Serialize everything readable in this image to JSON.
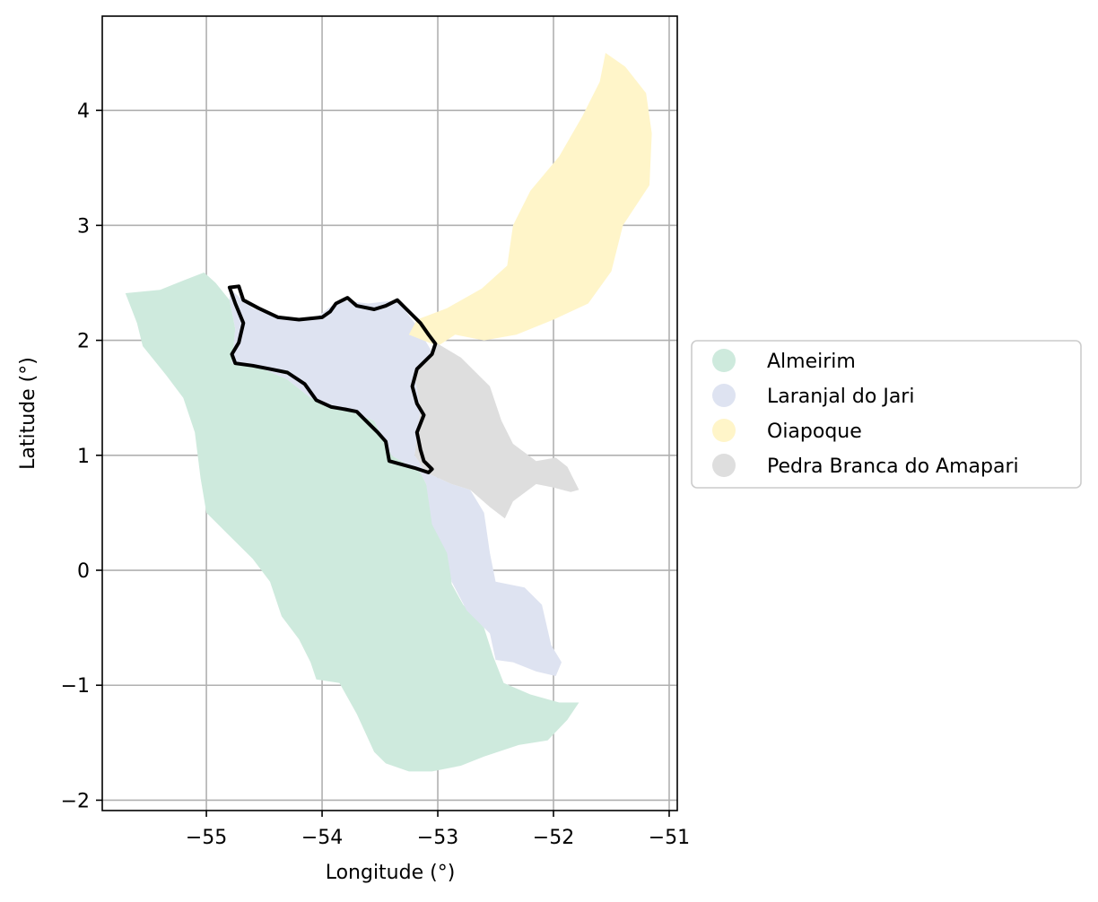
{
  "chart_data": {
    "type": "map",
    "xlabel": "Longitude (°)",
    "ylabel": "Latitude (°)",
    "xlim": [
      -55.9,
      -50.93
    ],
    "ylim": [
      -2.09,
      4.82
    ],
    "xticks": [
      -55,
      -54,
      -53,
      -52,
      -51
    ],
    "yticks": [
      -2,
      -1,
      0,
      1,
      2,
      3,
      4
    ],
    "xtick_labels": [
      "−55",
      "−54",
      "−53",
      "−52",
      "−51"
    ],
    "ytick_labels": [
      "−2",
      "−1",
      "0",
      "1",
      "2",
      "3",
      "4"
    ],
    "grid": true,
    "legend_position": "right, outside plot",
    "regions": [
      {
        "name": "Almeirim",
        "color": "#ceeadd",
        "polygon": [
          [
            -55.7,
            2.41
          ],
          [
            -55.4,
            2.44
          ],
          [
            -55.2,
            2.52
          ],
          [
            -55.02,
            2.59
          ],
          [
            -54.92,
            2.5
          ],
          [
            -54.8,
            2.35
          ],
          [
            -54.75,
            2.1
          ],
          [
            -54.78,
            1.8
          ],
          [
            -54.55,
            1.77
          ],
          [
            -54.3,
            1.66
          ],
          [
            -54.1,
            1.5
          ],
          [
            -53.8,
            1.4
          ],
          [
            -53.55,
            1.3
          ],
          [
            -53.4,
            1.0
          ],
          [
            -53.15,
            0.85
          ],
          [
            -53.1,
            0.75
          ],
          [
            -52.98,
            0.4
          ],
          [
            -52.9,
            0.15
          ],
          [
            -52.88,
            -0.12
          ],
          [
            -52.78,
            -0.3
          ],
          [
            -52.6,
            -0.5
          ],
          [
            -52.52,
            -0.75
          ],
          [
            -52.43,
            -0.98
          ],
          [
            -52.2,
            -1.08
          ],
          [
            -51.95,
            -1.15
          ],
          [
            -51.78,
            -1.15
          ],
          [
            -51.88,
            -1.3
          ],
          [
            -52.05,
            -1.48
          ],
          [
            -52.3,
            -1.52
          ],
          [
            -52.6,
            -1.62
          ],
          [
            -52.8,
            -1.7
          ],
          [
            -53.05,
            -1.75
          ],
          [
            -53.25,
            -1.75
          ],
          [
            -53.45,
            -1.68
          ],
          [
            -53.55,
            -1.58
          ],
          [
            -53.7,
            -1.25
          ],
          [
            -53.85,
            -0.98
          ],
          [
            -54.05,
            -0.95
          ],
          [
            -54.1,
            -0.8
          ],
          [
            -54.2,
            -0.6
          ],
          [
            -54.35,
            -0.4
          ],
          [
            -54.45,
            -0.1
          ],
          [
            -54.6,
            0.1
          ],
          [
            -54.8,
            0.3
          ],
          [
            -55.0,
            0.5
          ],
          [
            -55.05,
            0.8
          ],
          [
            -55.1,
            1.2
          ],
          [
            -55.2,
            1.5
          ],
          [
            -55.35,
            1.7
          ],
          [
            -55.55,
            1.95
          ],
          [
            -55.6,
            2.15
          ]
        ]
      },
      {
        "name": "Laranjal do Jari",
        "color": "#dee3f1",
        "polygon": [
          [
            -54.8,
            2.45
          ],
          [
            -54.6,
            2.28
          ],
          [
            -54.35,
            2.18
          ],
          [
            -54.05,
            2.2
          ],
          [
            -53.85,
            2.35
          ],
          [
            -53.6,
            2.32
          ],
          [
            -53.35,
            2.35
          ],
          [
            -53.2,
            2.15
          ],
          [
            -53.05,
            1.9
          ],
          [
            -53.2,
            1.7
          ],
          [
            -53.15,
            1.4
          ],
          [
            -53.2,
            1.0
          ],
          [
            -53.1,
            0.85
          ],
          [
            -52.88,
            0.75
          ],
          [
            -52.72,
            0.7
          ],
          [
            -52.6,
            0.5
          ],
          [
            -52.55,
            0.15
          ],
          [
            -52.5,
            -0.1
          ],
          [
            -52.25,
            -0.15
          ],
          [
            -52.1,
            -0.3
          ],
          [
            -52.02,
            -0.65
          ],
          [
            -51.93,
            -0.8
          ],
          [
            -51.98,
            -0.92
          ],
          [
            -52.15,
            -0.88
          ],
          [
            -52.35,
            -0.8
          ],
          [
            -52.5,
            -0.78
          ],
          [
            -52.55,
            -0.55
          ],
          [
            -52.75,
            -0.35
          ],
          [
            -52.88,
            -0.1
          ],
          [
            -52.92,
            0.15
          ],
          [
            -53.05,
            0.4
          ],
          [
            -53.1,
            0.75
          ],
          [
            -53.15,
            0.85
          ],
          [
            -53.4,
            1.0
          ],
          [
            -53.55,
            1.3
          ],
          [
            -53.8,
            1.4
          ],
          [
            -54.1,
            1.5
          ],
          [
            -54.3,
            1.66
          ],
          [
            -54.55,
            1.77
          ],
          [
            -54.78,
            1.8
          ],
          [
            -54.75,
            2.1
          ],
          [
            -54.8,
            2.35
          ]
        ]
      },
      {
        "name": "Oiapoque",
        "color": "#fff5c9",
        "polygon": [
          [
            -51.55,
            4.5
          ],
          [
            -51.38,
            4.38
          ],
          [
            -51.2,
            4.15
          ],
          [
            -51.15,
            3.8
          ],
          [
            -51.17,
            3.35
          ],
          [
            -51.4,
            3.0
          ],
          [
            -51.5,
            2.6
          ],
          [
            -51.7,
            2.32
          ],
          [
            -52.0,
            2.18
          ],
          [
            -52.32,
            2.05
          ],
          [
            -52.6,
            2.0
          ],
          [
            -52.85,
            2.05
          ],
          [
            -53.0,
            1.95
          ],
          [
            -53.25,
            2.05
          ],
          [
            -53.18,
            2.18
          ],
          [
            -52.92,
            2.28
          ],
          [
            -52.62,
            2.45
          ],
          [
            -52.4,
            2.65
          ],
          [
            -52.35,
            3.0
          ],
          [
            -52.2,
            3.3
          ],
          [
            -51.95,
            3.6
          ],
          [
            -51.75,
            3.95
          ],
          [
            -51.6,
            4.25
          ]
        ]
      },
      {
        "name": "Pedra Branca do Amapari",
        "color": "#dedede",
        "polygon": [
          [
            -53.0,
            1.97
          ],
          [
            -52.8,
            1.85
          ],
          [
            -52.55,
            1.6
          ],
          [
            -52.45,
            1.3
          ],
          [
            -52.35,
            1.1
          ],
          [
            -52.15,
            0.95
          ],
          [
            -51.98,
            0.98
          ],
          [
            -51.88,
            0.9
          ],
          [
            -51.78,
            0.7
          ],
          [
            -51.85,
            0.68
          ],
          [
            -52.0,
            0.72
          ],
          [
            -52.15,
            0.75
          ],
          [
            -52.35,
            0.6
          ],
          [
            -52.42,
            0.45
          ],
          [
            -52.55,
            0.55
          ],
          [
            -52.72,
            0.7
          ],
          [
            -52.88,
            0.75
          ],
          [
            -53.1,
            0.85
          ],
          [
            -53.2,
            1.0
          ],
          [
            -53.15,
            1.4
          ],
          [
            -53.2,
            1.7
          ],
          [
            -53.05,
            1.9
          ]
        ]
      }
    ],
    "outline": {
      "color": "#000000",
      "polygon": [
        [
          -54.8,
          2.46
        ],
        [
          -54.72,
          2.47
        ],
        [
          -54.68,
          2.35
        ],
        [
          -54.55,
          2.28
        ],
        [
          -54.38,
          2.2
        ],
        [
          -54.2,
          2.18
        ],
        [
          -54.0,
          2.2
        ],
        [
          -53.93,
          2.25
        ],
        [
          -53.88,
          2.32
        ],
        [
          -53.78,
          2.37
        ],
        [
          -53.7,
          2.3
        ],
        [
          -53.55,
          2.27
        ],
        [
          -53.45,
          2.3
        ],
        [
          -53.35,
          2.35
        ],
        [
          -53.25,
          2.25
        ],
        [
          -53.15,
          2.15
        ],
        [
          -53.08,
          2.05
        ],
        [
          -53.02,
          1.97
        ],
        [
          -53.05,
          1.88
        ],
        [
          -53.18,
          1.75
        ],
        [
          -53.22,
          1.6
        ],
        [
          -53.18,
          1.45
        ],
        [
          -53.12,
          1.35
        ],
        [
          -53.18,
          1.2
        ],
        [
          -53.15,
          1.05
        ],
        [
          -53.12,
          0.95
        ],
        [
          -53.05,
          0.88
        ],
        [
          -53.08,
          0.85
        ],
        [
          -53.2,
          0.89
        ],
        [
          -53.42,
          0.95
        ],
        [
          -53.45,
          1.12
        ],
        [
          -53.52,
          1.2
        ],
        [
          -53.6,
          1.28
        ],
        [
          -53.7,
          1.38
        ],
        [
          -53.8,
          1.4
        ],
        [
          -53.92,
          1.42
        ],
        [
          -54.05,
          1.48
        ],
        [
          -54.15,
          1.62
        ],
        [
          -54.3,
          1.72
        ],
        [
          -54.45,
          1.75
        ],
        [
          -54.6,
          1.78
        ],
        [
          -54.75,
          1.8
        ],
        [
          -54.78,
          1.88
        ],
        [
          -54.72,
          1.98
        ],
        [
          -54.68,
          2.15
        ],
        [
          -54.75,
          2.32
        ]
      ]
    }
  },
  "legend": {
    "items": [
      {
        "label": "Almeirim",
        "color": "#ceeadd"
      },
      {
        "label": "Laranjal do Jari",
        "color": "#dee3f1"
      },
      {
        "label": "Oiapoque",
        "color": "#fff5c9"
      },
      {
        "label": "Pedra Branca do Amapari",
        "color": "#dedede"
      }
    ]
  }
}
